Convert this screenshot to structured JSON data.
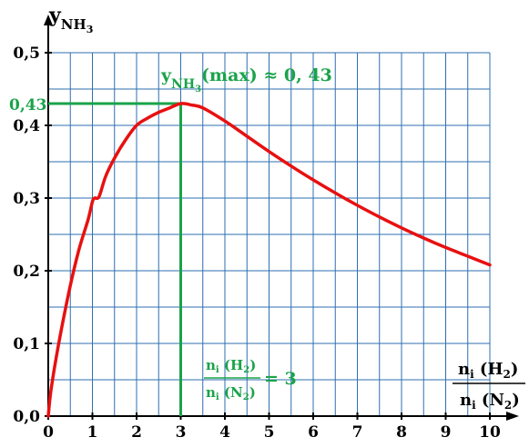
{
  "chart_data": {
    "type": "line",
    "xlim": [
      0,
      10
    ],
    "ylim": [
      0,
      0.5
    ],
    "grid": true,
    "x_ticks": [
      "0",
      "1",
      "2",
      "3",
      "4",
      "5",
      "6",
      "7",
      "8",
      "9",
      "10"
    ],
    "y_ticks": [
      "0,0",
      "0,1",
      "0,2",
      "0,3",
      "0,4",
      "0,5"
    ],
    "ylabel": {
      "base": "y",
      "sub": "NH",
      "subsub": "3"
    },
    "xlabel": {
      "num_n": "n",
      "num_i": "i",
      "num_species": " (H",
      "num_species_sub": "2",
      "num_close": ")",
      "den_n": "n",
      "den_i": "i",
      "den_species": " (N",
      "den_species_sub": "2",
      "den_close": ")"
    },
    "series": [
      {
        "color": "#e81010",
        "points": [
          [
            0.0,
            0.0
          ],
          [
            0.05,
            0.03
          ],
          [
            0.15,
            0.07
          ],
          [
            0.3,
            0.12
          ],
          [
            0.5,
            0.18
          ],
          [
            0.7,
            0.23
          ],
          [
            0.9,
            0.27
          ],
          [
            1.0,
            0.295
          ],
          [
            1.05,
            0.3
          ],
          [
            1.15,
            0.302
          ],
          [
            1.3,
            0.33
          ],
          [
            1.5,
            0.355
          ],
          [
            1.75,
            0.38
          ],
          [
            2.0,
            0.4
          ],
          [
            2.25,
            0.41
          ],
          [
            2.5,
            0.418
          ],
          [
            2.75,
            0.424
          ],
          [
            3.0,
            0.43
          ],
          [
            3.25,
            0.428
          ],
          [
            3.5,
            0.424
          ],
          [
            4.0,
            0.406
          ],
          [
            4.5,
            0.385
          ],
          [
            5.0,
            0.364
          ],
          [
            5.5,
            0.344
          ],
          [
            6.0,
            0.325
          ],
          [
            6.5,
            0.307
          ],
          [
            7.0,
            0.29
          ],
          [
            7.5,
            0.274
          ],
          [
            8.0,
            0.259
          ],
          [
            8.5,
            0.245
          ],
          [
            9.0,
            0.232
          ],
          [
            9.5,
            0.22
          ],
          [
            10.0,
            0.208
          ]
        ]
      }
    ],
    "annotations": {
      "max_point": {
        "x": 3,
        "y": 0.43
      },
      "max_y_label": "0,43",
      "max_label": {
        "base": "y",
        "sub": "NH",
        "subsub": "3",
        "rest": "(max) ≈ 0, 43"
      },
      "ratio_label": {
        "num_n": "n",
        "num_i": "i",
        "num_species": " (H",
        "num_species_sub": "2",
        "num_close": ")",
        "den_n": "n",
        "den_i": "i",
        "den_species": " (N",
        "den_species_sub": "2",
        "den_close": ")",
        "equals": "= 3"
      }
    },
    "colors": {
      "grid": "#2e6fb0",
      "curve": "#e81010",
      "annotation": "#1aa34a",
      "axis": "#000000"
    }
  }
}
